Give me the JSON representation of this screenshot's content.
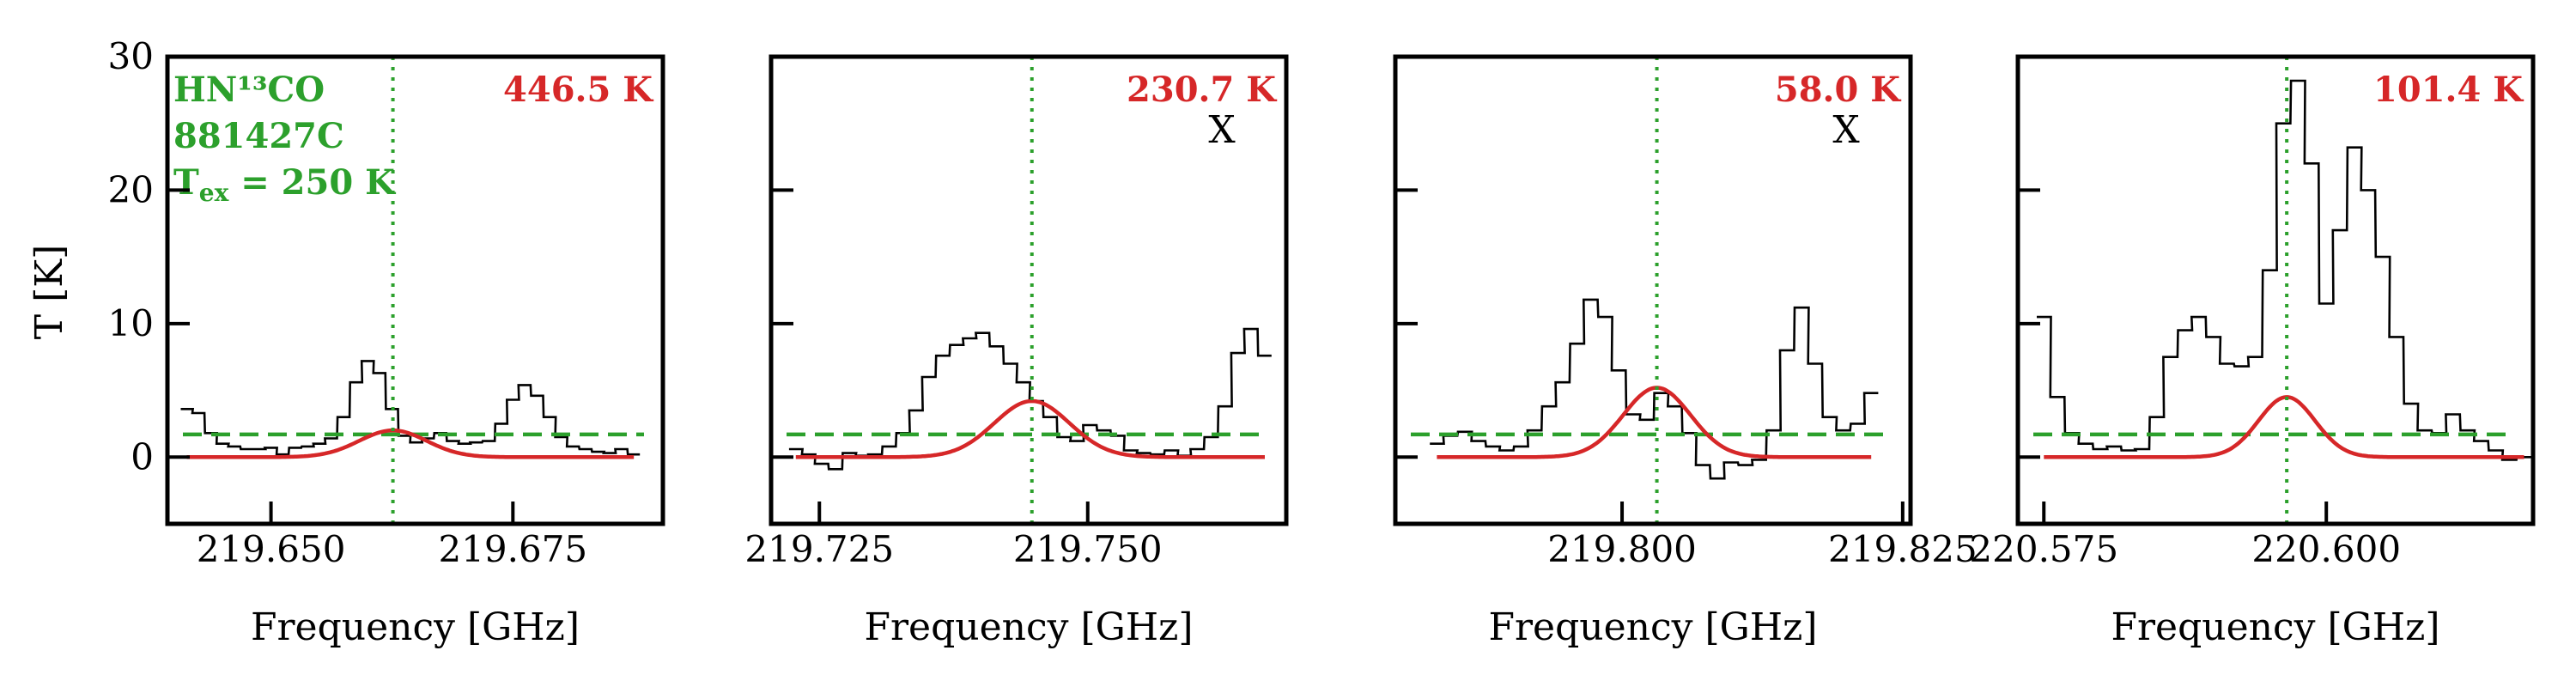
{
  "chart_data": {
    "type": "line",
    "ylabel": "T [K]",
    "xlabel": "Frequency [GHz]",
    "ylim": [
      -5,
      30
    ],
    "yticks": [
      0,
      10,
      20,
      30
    ],
    "info": {
      "molecule": "HN¹³CO",
      "source": "881427C",
      "tex_text": "T",
      "tex_sub": "ex",
      "tex_value": " = 250 K"
    },
    "colors": {
      "observed": "#000000",
      "model": "#d62728",
      "noise_and_line": "#2ca02c"
    },
    "panels": [
      {
        "xlim": [
          219.6393,
          219.6905
        ],
        "xticks": [
          219.65,
          219.675
        ],
        "xtick_labels": [
          "219.650",
          "219.675"
        ],
        "peak_label": "446.5 K",
        "flag": "",
        "line_freq": 219.6626,
        "noise_level": 1.7,
        "model": {
          "amp": 2.0,
          "sigma": 0.0035
        },
        "observed": [
          [
            219.6413,
            3.6
          ],
          [
            219.6425,
            3.3
          ],
          [
            219.6438,
            1.8
          ],
          [
            219.645,
            1.0
          ],
          [
            219.6462,
            0.8
          ],
          [
            219.6475,
            0.6
          ],
          [
            219.6488,
            0.6
          ],
          [
            219.65,
            0.7
          ],
          [
            219.6512,
            0.2
          ],
          [
            219.6525,
            0.7
          ],
          [
            219.6538,
            0.8
          ],
          [
            219.655,
            1.0
          ],
          [
            219.6562,
            1.4
          ],
          [
            219.6575,
            3.0
          ],
          [
            219.6588,
            5.6
          ],
          [
            219.66,
            7.2
          ],
          [
            219.6612,
            6.3
          ],
          [
            219.6625,
            3.6
          ],
          [
            219.6638,
            1.6
          ],
          [
            219.665,
            1.1
          ],
          [
            219.6662,
            1.4
          ],
          [
            219.6675,
            1.8
          ],
          [
            219.6688,
            1.2
          ],
          [
            219.67,
            1.0
          ],
          [
            219.6712,
            1.1
          ],
          [
            219.6725,
            1.2
          ],
          [
            219.6738,
            2.5
          ],
          [
            219.675,
            4.3
          ],
          [
            219.6762,
            5.4
          ],
          [
            219.6775,
            4.6
          ],
          [
            219.6788,
            3.0
          ],
          [
            219.68,
            1.5
          ],
          [
            219.6812,
            0.8
          ],
          [
            219.6825,
            0.6
          ],
          [
            219.6838,
            0.4
          ],
          [
            219.685,
            0.3
          ],
          [
            219.6862,
            0.6
          ],
          [
            219.6875,
            0.2
          ]
        ]
      },
      {
        "xlim": [
          219.7205,
          219.7685
        ],
        "xticks": [
          219.725,
          219.75
        ],
        "xtick_labels": [
          "219.725",
          "219.750"
        ],
        "peak_label": "230.7 K",
        "flag": "X",
        "line_freq": 219.7448,
        "noise_level": 1.7,
        "model": {
          "amp": 4.2,
          "sigma": 0.0035
        },
        "observed": [
          [
            219.7228,
            0.6
          ],
          [
            219.724,
            0.2
          ],
          [
            219.7252,
            -0.5
          ],
          [
            219.7265,
            -0.9
          ],
          [
            219.7278,
            0.3
          ],
          [
            219.729,
            0.1
          ],
          [
            219.7302,
            0.2
          ],
          [
            219.7315,
            0.8
          ],
          [
            219.7328,
            1.8
          ],
          [
            219.734,
            3.5
          ],
          [
            219.7352,
            6.0
          ],
          [
            219.7365,
            7.6
          ],
          [
            219.7378,
            8.4
          ],
          [
            219.739,
            8.9
          ],
          [
            219.7402,
            9.3
          ],
          [
            219.7415,
            8.3
          ],
          [
            219.7428,
            7.0
          ],
          [
            219.744,
            5.6
          ],
          [
            219.7452,
            4.2
          ],
          [
            219.7465,
            3.0
          ],
          [
            219.7478,
            1.5
          ],
          [
            219.749,
            1.2
          ],
          [
            219.7502,
            2.4
          ],
          [
            219.7515,
            2.0
          ],
          [
            219.7528,
            1.6
          ],
          [
            219.754,
            0.5
          ],
          [
            219.7552,
            0.3
          ],
          [
            219.7565,
            0.2
          ],
          [
            219.7578,
            0.5
          ],
          [
            219.759,
            0.1
          ],
          [
            219.7602,
            0.6
          ],
          [
            219.7615,
            1.5
          ],
          [
            219.7628,
            3.8
          ],
          [
            219.764,
            7.8
          ],
          [
            219.7652,
            9.6
          ],
          [
            219.7665,
            7.6
          ]
        ]
      },
      {
        "xlim": [
          219.7798,
          219.8257
        ],
        "xticks": [
          219.8,
          219.825
        ],
        "xtick_labels": [
          "219.800",
          "219.825"
        ],
        "peak_label": "58.0 K",
        "flag": "X",
        "line_freq": 219.8031,
        "noise_level": 1.7,
        "model": {
          "amp": 5.2,
          "sigma": 0.003
        },
        "observed": [
          [
            219.7835,
            1.0
          ],
          [
            219.7847,
            1.6
          ],
          [
            219.786,
            1.9
          ],
          [
            219.7872,
            1.2
          ],
          [
            219.7885,
            0.8
          ],
          [
            219.7897,
            0.5
          ],
          [
            219.791,
            0.8
          ],
          [
            219.7922,
            2.0
          ],
          [
            219.7935,
            3.8
          ],
          [
            219.7947,
            5.6
          ],
          [
            219.796,
            8.5
          ],
          [
            219.7972,
            11.8
          ],
          [
            219.7985,
            10.5
          ],
          [
            219.7997,
            6.5
          ],
          [
            219.801,
            3.2
          ],
          [
            219.8022,
            2.8
          ],
          [
            219.8035,
            4.8
          ],
          [
            219.8047,
            3.8
          ],
          [
            219.806,
            1.8
          ],
          [
            219.8072,
            -0.6
          ],
          [
            219.8085,
            -1.6
          ],
          [
            219.8097,
            -0.4
          ],
          [
            219.811,
            -0.6
          ],
          [
            219.8122,
            -0.2
          ],
          [
            219.8135,
            2.0
          ],
          [
            219.8147,
            8.0
          ],
          [
            219.816,
            11.2
          ],
          [
            219.8172,
            7.0
          ],
          [
            219.8185,
            3.0
          ],
          [
            219.8197,
            2.0
          ],
          [
            219.821,
            2.5
          ],
          [
            219.8222,
            4.8
          ]
        ]
      },
      {
        "xlim": [
          220.5727,
          220.6183
        ],
        "xticks": [
          220.575,
          220.6
        ],
        "xtick_labels": [
          "220.575",
          "220.600"
        ],
        "peak_label": "101.4 K",
        "flag": "",
        "line_freq": 220.5965,
        "noise_level": 1.7,
        "model": {
          "amp": 4.5,
          "sigma": 0.0025
        },
        "observed": [
          [
            220.575,
            10.5
          ],
          [
            220.5762,
            4.5
          ],
          [
            220.5775,
            1.8
          ],
          [
            220.5787,
            1.0
          ],
          [
            220.58,
            0.6
          ],
          [
            220.5812,
            0.8
          ],
          [
            220.5825,
            0.5
          ],
          [
            220.5837,
            0.6
          ],
          [
            220.585,
            3.0
          ],
          [
            220.5862,
            7.5
          ],
          [
            220.5875,
            9.5
          ],
          [
            220.5887,
            10.5
          ],
          [
            220.59,
            9.0
          ],
          [
            220.5912,
            7.0
          ],
          [
            220.5925,
            6.8
          ],
          [
            220.5937,
            7.5
          ],
          [
            220.595,
            14.0
          ],
          [
            220.5962,
            25.0
          ],
          [
            220.5975,
            28.2
          ],
          [
            220.5987,
            22.0
          ],
          [
            220.6,
            11.5
          ],
          [
            220.6012,
            17.0
          ],
          [
            220.6025,
            23.2
          ],
          [
            220.6037,
            20.0
          ],
          [
            220.605,
            15.0
          ],
          [
            220.6062,
            9.0
          ],
          [
            220.6075,
            4.0
          ],
          [
            220.6087,
            2.0
          ],
          [
            220.61,
            1.8
          ],
          [
            220.6112,
            3.2
          ],
          [
            220.6125,
            2.0
          ],
          [
            220.6137,
            1.2
          ],
          [
            220.615,
            0.5
          ],
          [
            220.6162,
            -0.2
          ],
          [
            220.6175,
            0.0
          ]
        ]
      }
    ]
  }
}
